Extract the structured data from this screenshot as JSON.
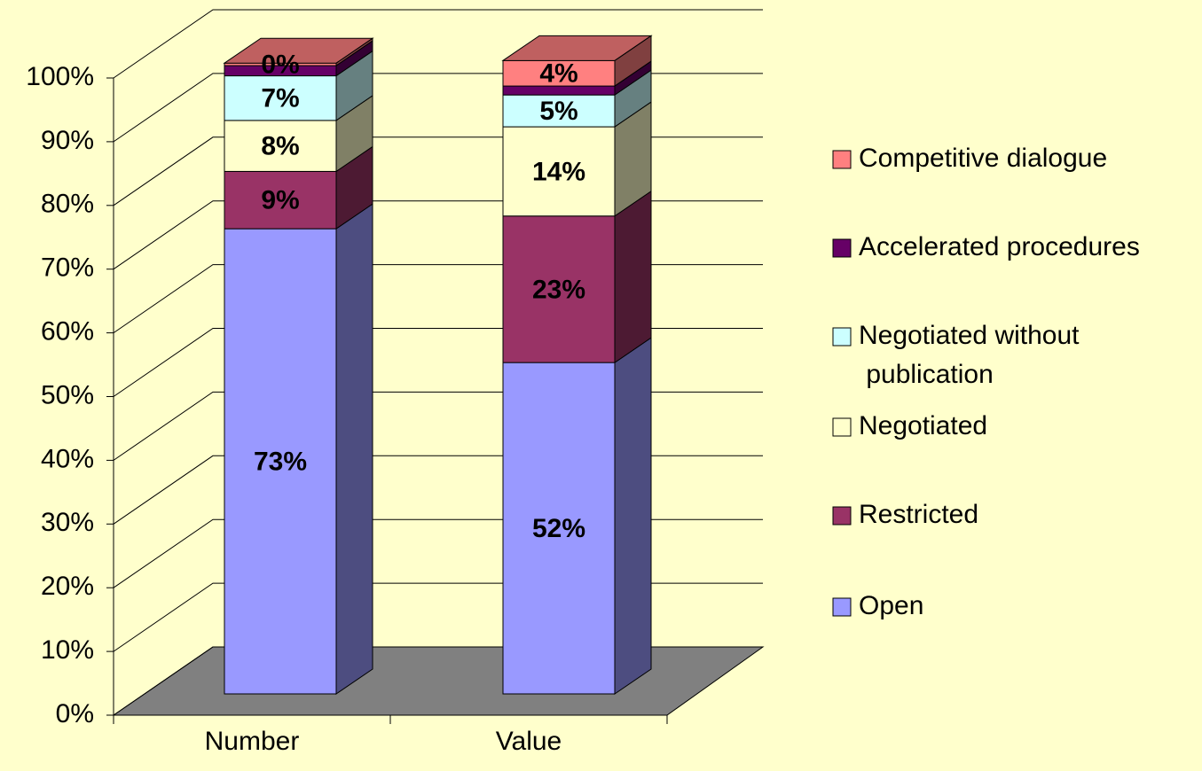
{
  "chart_data": {
    "type": "stacked-bar-3d",
    "categories": [
      "Number",
      "Value"
    ],
    "series": [
      {
        "name": "Open",
        "color": "#9999ff",
        "values": [
          73,
          52
        ],
        "value_labels": [
          "73%",
          "52%"
        ]
      },
      {
        "name": "Restricted",
        "color": "#993366",
        "values": [
          9,
          23
        ],
        "value_labels": [
          "9%",
          "23%"
        ]
      },
      {
        "name": "Negotiated",
        "color": "#ffffcc",
        "values": [
          8,
          14
        ],
        "value_labels": [
          "8%",
          "14%"
        ]
      },
      {
        "name": "Negotiated without publication",
        "color": "#ccffff",
        "values": [
          7,
          5
        ],
        "value_labels": [
          "7%",
          "5%"
        ]
      },
      {
        "name": "Accelerated procedures",
        "color": "#660066",
        "values": [
          1.6,
          1.4
        ],
        "value_labels": [
          null,
          null
        ]
      },
      {
        "name": "Competitive dialogue",
        "color": "#ff8080",
        "values": [
          0.4,
          4
        ],
        "value_labels": [
          "0%",
          "4%"
        ]
      }
    ],
    "ylim": [
      0,
      100
    ],
    "yticks": [
      {
        "value": 0,
        "label": "0%"
      },
      {
        "value": 10,
        "label": "10%"
      },
      {
        "value": 20,
        "label": "20%"
      },
      {
        "value": 30,
        "label": "30%"
      },
      {
        "value": 40,
        "label": "40%"
      },
      {
        "value": 50,
        "label": "50%"
      },
      {
        "value": 60,
        "label": "60%"
      },
      {
        "value": 70,
        "label": "70%"
      },
      {
        "value": 80,
        "label": "80%"
      },
      {
        "value": 90,
        "label": "90%"
      },
      {
        "value": 100,
        "label": "100%"
      }
    ],
    "grid": true,
    "legend": "right"
  }
}
